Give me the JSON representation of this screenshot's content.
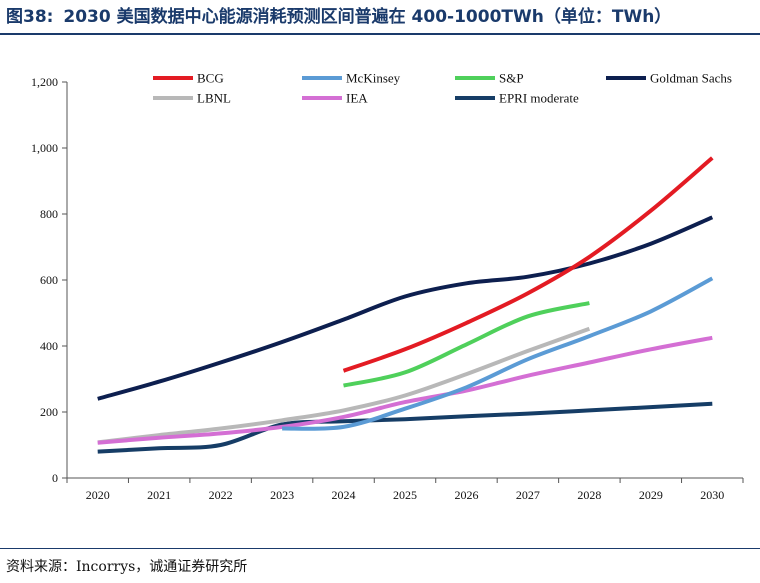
{
  "header": {
    "figure_number": "图38:",
    "title": "2030 美国数据中心能源消耗预测区间普遍在 400-1000TWh（单位：TWh）"
  },
  "footer": {
    "source": "资料来源：Incorrys，诚通证券研究所"
  },
  "chart_data": {
    "type": "line",
    "title": "",
    "xlabel": "",
    "ylabel": "",
    "x": [
      2020,
      2021,
      2022,
      2023,
      2024,
      2025,
      2026,
      2027,
      2028,
      2029,
      2030
    ],
    "ylim": [
      0,
      1200
    ],
    "yticks": [
      0,
      200,
      400,
      600,
      800,
      1000,
      1200
    ],
    "ytick_labels": [
      "0",
      "200",
      "400",
      "600",
      "800",
      "1,000",
      "1,200"
    ],
    "grid": false,
    "legend_position": "top",
    "series": [
      {
        "name": "BCG",
        "color": "#e31b23",
        "points": [
          [
            2024,
            325
          ],
          [
            2025,
            390
          ],
          [
            2026,
            470
          ],
          [
            2027,
            560
          ],
          [
            2028,
            670
          ],
          [
            2029,
            810
          ],
          [
            2030,
            970
          ]
        ]
      },
      {
        "name": "McKinsey",
        "color": "#5b9bd5",
        "points": [
          [
            2023,
            150
          ],
          [
            2024,
            155
          ],
          [
            2025,
            210
          ],
          [
            2026,
            275
          ],
          [
            2027,
            360
          ],
          [
            2028,
            430
          ],
          [
            2029,
            505
          ],
          [
            2030,
            605
          ]
        ]
      },
      {
        "name": "S&P",
        "color": "#4fd05b",
        "points": [
          [
            2024,
            280
          ],
          [
            2025,
            320
          ],
          [
            2026,
            405
          ],
          [
            2027,
            490
          ],
          [
            2028,
            530
          ]
        ]
      },
      {
        "name": "Goldman Sachs",
        "color": "#0d1f4f",
        "points": [
          [
            2020,
            240
          ],
          [
            2021,
            292
          ],
          [
            2022,
            350
          ],
          [
            2023,
            412
          ],
          [
            2024,
            480
          ],
          [
            2025,
            550
          ],
          [
            2026,
            590
          ],
          [
            2027,
            610
          ],
          [
            2028,
            650
          ],
          [
            2029,
            710
          ],
          [
            2030,
            790
          ]
        ]
      },
      {
        "name": "LBNL",
        "color": "#b8b8b8",
        "points": [
          [
            2020,
            108
          ],
          [
            2021,
            130
          ],
          [
            2022,
            150
          ],
          [
            2023,
            175
          ],
          [
            2024,
            205
          ],
          [
            2025,
            250
          ],
          [
            2026,
            315
          ],
          [
            2027,
            385
          ],
          [
            2028,
            452
          ]
        ]
      },
      {
        "name": "IEA",
        "color": "#d46fd4",
        "points": [
          [
            2020,
            107
          ],
          [
            2021,
            122
          ],
          [
            2022,
            135
          ],
          [
            2023,
            155
          ],
          [
            2024,
            185
          ],
          [
            2025,
            230
          ],
          [
            2026,
            265
          ],
          [
            2027,
            310
          ],
          [
            2028,
            350
          ],
          [
            2029,
            390
          ],
          [
            2030,
            425
          ]
        ]
      },
      {
        "name": "EPRI moderate",
        "color": "#163d66",
        "points": [
          [
            2020,
            80
          ],
          [
            2021,
            90
          ],
          [
            2022,
            100
          ],
          [
            2023,
            162
          ],
          [
            2024,
            172
          ],
          [
            2025,
            178
          ],
          [
            2026,
            187
          ],
          [
            2027,
            195
          ],
          [
            2028,
            205
          ],
          [
            2029,
            215
          ],
          [
            2030,
            225
          ]
        ]
      }
    ]
  }
}
